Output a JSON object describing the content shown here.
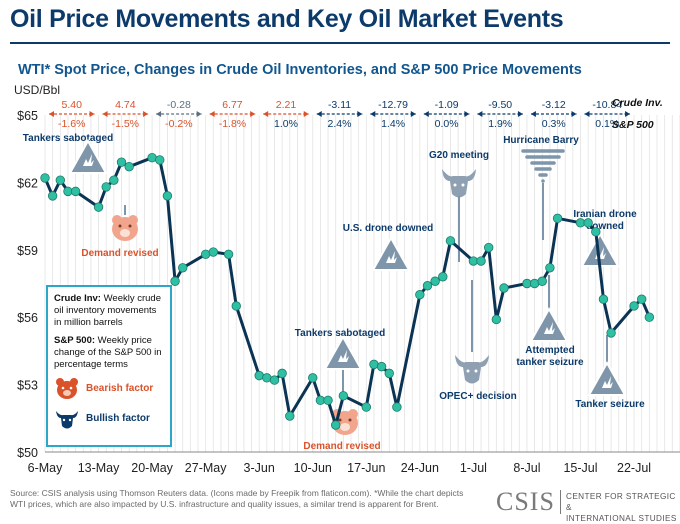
{
  "title": "Oil Price Movements and Key Oil Market Events",
  "subtitle": "WTI* Spot Price, Changes in Crude Oil Inventories, and S&P 500 Price Movements",
  "y_unit": "USD/Bbl",
  "row_labels": {
    "inventory": "Crude Inv.",
    "sp500": "S&P 500"
  },
  "colors": {
    "bearish": "#d9522a",
    "bullish": "#0c3a6a",
    "neutral": "#5b6f80",
    "line": "#0b3354",
    "point": "#2fbfa2"
  },
  "weekly_markers": [
    {
      "inv": "5.40",
      "sp": "-1.6%",
      "inv_color": "bearish",
      "sp_color": "bearish"
    },
    {
      "inv": "4.74",
      "sp": "-1.5%",
      "inv_color": "bearish",
      "sp_color": "bearish"
    },
    {
      "inv": "-0.28",
      "sp": "-0.2%",
      "inv_color": "neutral",
      "sp_color": "bearish"
    },
    {
      "inv": "6.77",
      "sp": "-1.8%",
      "inv_color": "bearish",
      "sp_color": "bearish"
    },
    {
      "inv": "2.21",
      "sp": "1.0%",
      "inv_color": "bearish",
      "sp_color": "bullish"
    },
    {
      "inv": "-3.11",
      "sp": "2.4%",
      "inv_color": "bullish",
      "sp_color": "bullish"
    },
    {
      "inv": "-12.79",
      "sp": "1.4%",
      "inv_color": "bullish",
      "sp_color": "bullish"
    },
    {
      "inv": "-1.09",
      "sp": "0.0%",
      "inv_color": "bullish",
      "sp_color": "bullish"
    },
    {
      "inv": "-9.50",
      "sp": "1.9%",
      "inv_color": "bullish",
      "sp_color": "bullish"
    },
    {
      "inv": "-3.12",
      "sp": "0.3%",
      "inv_color": "bullish",
      "sp_color": "bullish"
    },
    {
      "inv": "-10.84",
      "sp": "0.1%",
      "inv_color": "bullish",
      "sp_color": "bullish"
    }
  ],
  "events": [
    {
      "label": "Tankers sabotaged",
      "day": 10,
      "icon": "warning-triangle-icon"
    },
    {
      "label": "Demand revised",
      "day": 11,
      "icon": "bear-icon"
    },
    {
      "label": "U.S. drone downed",
      "day": 47,
      "icon": "warning-triangle-icon"
    },
    {
      "label": "Tankers sabotaged",
      "day": 38,
      "icon": "warning-triangle-icon"
    },
    {
      "label": "Demand revised",
      "day": 38,
      "icon": "bear-icon"
    },
    {
      "label": "G20 meeting",
      "day": 54,
      "icon": "bull-icon"
    },
    {
      "label": "OPEC+ decision",
      "day": 57,
      "icon": "bull-icon"
    },
    {
      "label": "Hurricane Barry",
      "day": 67,
      "icon": "tornado-icon"
    },
    {
      "label": "Attempted tanker seizure",
      "day": 68,
      "icon": "warning-triangle-icon"
    },
    {
      "label": "Iranian drone downed",
      "day": 78,
      "icon": "warning-triangle-icon"
    },
    {
      "label": "Tanker seizure",
      "day": 79,
      "icon": "warning-triangle-icon"
    }
  ],
  "legend": {
    "inv_term": "Crude Inv:",
    "inv_text": " Weekly crude oil inventory movements in million barrels",
    "sp_term": "S&P 500:",
    "sp_text": " Weekly price change of the S&P 500 in percentage terms",
    "bearish_label": "Bearish factor",
    "bullish_label": "Bullish factor"
  },
  "source": "Source: CSIS analysis using Thomson Reuters data. (Icons made by Freepik from flaticon.com). *While the chart depicts WTI prices, which are also impacted by U.S. infrastructure and quality issues, a similar trend is apparent for Brent.",
  "logo": {
    "mark": "CSIS",
    "line1": "CENTER FOR STRATEGIC &",
    "line2": "INTERNATIONAL STUDIES"
  },
  "chart_data": {
    "type": "line",
    "title": "WTI* Spot Price, Changes in Crude Oil Inventories, and S&P 500 Price Movements",
    "ylabel": "USD/Bbl",
    "ylim": [
      50,
      65
    ],
    "yticks": [
      "$50",
      "$53",
      "$56",
      "$59",
      "$62",
      "$65"
    ],
    "x_ticks": [
      "6-May",
      "13-May",
      "20-May",
      "27-May",
      "3-Jun",
      "10-Jun",
      "17-Jun",
      "24-Jun",
      "1-Jul",
      "8-Jul",
      "15-Jul",
      "22-Jul"
    ],
    "x_domain_days": [
      0,
      83
    ],
    "grid": "vertical",
    "series": [
      {
        "x": [
          0,
          1,
          2,
          3,
          4,
          7,
          8,
          9,
          10,
          11,
          14,
          15,
          16,
          17,
          18,
          21,
          22,
          24,
          25,
          28,
          29,
          30,
          31,
          32,
          35,
          36,
          37,
          38,
          39,
          42,
          43,
          44,
          45,
          46,
          49,
          50,
          51,
          52,
          53,
          56,
          57,
          58,
          59,
          60,
          63,
          64,
          65,
          66,
          67,
          70,
          71,
          72,
          73,
          74,
          77,
          78,
          79
        ],
        "y": [
          62.2,
          61.4,
          62.1,
          61.6,
          61.6,
          60.9,
          61.8,
          62.1,
          62.9,
          62.7,
          63.1,
          63.0,
          61.4,
          57.6,
          58.2,
          58.8,
          58.9,
          58.8,
          56.5,
          53.4,
          53.3,
          53.2,
          53.5,
          51.6,
          53.3,
          52.3,
          52.3,
          51.2,
          52.5,
          52.0,
          53.9,
          53.8,
          53.5,
          52.0,
          57.0,
          57.4,
          57.6,
          57.8,
          59.4,
          58.5,
          58.5,
          59.1,
          55.9,
          57.3,
          57.5,
          57.5,
          57.6,
          58.2,
          60.4,
          60.2,
          60.2,
          59.8,
          56.8,
          55.3,
          56.5,
          56.8,
          56.0
        ]
      }
    ]
  }
}
